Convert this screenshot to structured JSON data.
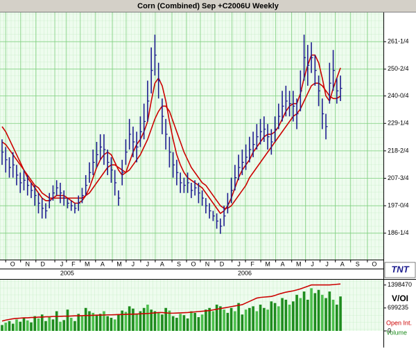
{
  "logo": "TNT",
  "chart_data": [
    {
      "type": "ohlc",
      "title": "Corn (Combined) Sep +C2006U Weekly",
      "bar_color": "#1c1c8e",
      "grid": true,
      "ylim": [
        175.9,
        272.7
      ],
      "yticks": [
        {
          "value": 186.25,
          "label": "186-1/4"
        },
        {
          "value": 197,
          "label": "197-0/4"
        },
        {
          "value": 207.75,
          "label": "207-3/4"
        },
        {
          "value": 218.5,
          "label": "218-2/4"
        },
        {
          "value": 229.25,
          "label": "229-1/4"
        },
        {
          "value": 240,
          "label": "240-0/4"
        },
        {
          "value": 250.5,
          "label": "250-2/4"
        },
        {
          "value": 261.25,
          "label": "261-1/4"
        }
      ],
      "xlim": [
        -0.57,
        104.8
      ],
      "xticks": [
        {
          "value": 2.9,
          "label": "O"
        },
        {
          "value": 7.0,
          "label": "N"
        },
        {
          "value": 11.2,
          "label": "D"
        },
        {
          "value": 16.4,
          "label": "J"
        },
        {
          "value": 19.6,
          "label": "F"
        },
        {
          "value": 23.4,
          "label": "M"
        },
        {
          "value": 27.6,
          "label": "A"
        },
        {
          "value": 32.2,
          "label": "M"
        },
        {
          "value": 36.0,
          "label": "J"
        },
        {
          "value": 40.0,
          "label": "J"
        },
        {
          "value": 44.0,
          "label": "A"
        },
        {
          "value": 48.6,
          "label": "S"
        },
        {
          "value": 52.6,
          "label": "O"
        },
        {
          "value": 56.4,
          "label": "N"
        },
        {
          "value": 60.4,
          "label": "D"
        },
        {
          "value": 65.1,
          "label": "J"
        },
        {
          "value": 68.8,
          "label": "F"
        },
        {
          "value": 73.0,
          "label": "M"
        },
        {
          "value": 77.1,
          "label": "A"
        },
        {
          "value": 81.5,
          "label": "M"
        },
        {
          "value": 85.3,
          "label": "J"
        },
        {
          "value": 89.3,
          "label": "J"
        },
        {
          "value": 93.5,
          "label": "A"
        },
        {
          "value": 97.7,
          "label": "S"
        },
        {
          "value": 102.3,
          "label": "O"
        }
      ],
      "year_labels": [
        {
          "value": 17.9,
          "label": "2005"
        },
        {
          "value": 66.7,
          "label": "2006"
        }
      ],
      "high": [
        223,
        220,
        216,
        218,
        213,
        210,
        211,
        209,
        206,
        205,
        202,
        200,
        198,
        202,
        205,
        207,
        206,
        203,
        200,
        199,
        198,
        201,
        204,
        209,
        214,
        219,
        222,
        225,
        225,
        219,
        216,
        211,
        203,
        215,
        223,
        231,
        228,
        226,
        232,
        237,
        246,
        259,
        264,
        253,
        239,
        231,
        224,
        218,
        215,
        210,
        208,
        210,
        206,
        207,
        206,
        203,
        200,
        198,
        195,
        194,
        192,
        197,
        202,
        208,
        213,
        217,
        219,
        221,
        224,
        226,
        229,
        231,
        232,
        229,
        227,
        232,
        237,
        242,
        244,
        242,
        242,
        239,
        250,
        264,
        260,
        261,
        256,
        248,
        239,
        233,
        253,
        258,
        247,
        248
      ],
      "low": [
        213,
        210,
        208,
        208,
        205,
        202,
        203,
        201,
        200,
        197,
        194,
        192,
        192,
        196,
        199,
        201,
        198,
        197,
        196,
        195,
        194,
        195,
        198,
        201,
        206,
        209,
        212,
        215,
        213,
        209,
        206,
        201,
        197,
        205,
        213,
        219,
        216,
        214,
        220,
        223,
        230,
        241,
        248,
        239,
        225,
        219,
        212,
        208,
        205,
        202,
        202,
        202,
        200,
        201,
        198,
        197,
        194,
        192,
        191,
        188,
        186,
        189,
        194,
        198,
        203,
        207,
        209,
        211,
        214,
        216,
        219,
        221,
        222,
        219,
        217,
        222,
        227,
        230,
        232,
        232,
        230,
        227,
        234,
        246,
        244,
        249,
        244,
        236,
        227,
        223,
        237,
        242,
        237,
        238
      ],
      "close": [
        218,
        215,
        212,
        213,
        209,
        206,
        207,
        205,
        203,
        201,
        198,
        196,
        195,
        199,
        202,
        204,
        202,
        200,
        198,
        197,
        196,
        198,
        201,
        205,
        210,
        214,
        217,
        220,
        219,
        214,
        211,
        206,
        200,
        210,
        218,
        225,
        222,
        220,
        226,
        230,
        238,
        250,
        256,
        246,
        232,
        225,
        218,
        213,
        210,
        206,
        205,
        206,
        203,
        204,
        202,
        200,
        197,
        195,
        193,
        191,
        189,
        193,
        198,
        203,
        208,
        212,
        214,
        216,
        219,
        221,
        224,
        226,
        227,
        224,
        222,
        227,
        232,
        236,
        238,
        237,
        236,
        233,
        242,
        255,
        252,
        255,
        250,
        242,
        233,
        228,
        245,
        250,
        242,
        243
      ],
      "lines": [
        {
          "color": "#cc0000",
          "values": [
            228,
            226,
            223,
            220,
            217,
            214,
            211,
            208,
            206,
            204,
            202,
            200,
            199,
            199,
            200,
            201,
            201,
            201,
            200,
            199,
            198,
            198,
            199,
            201,
            204,
            208,
            212,
            215,
            217,
            218,
            217,
            214,
            211,
            209,
            210,
            214,
            218,
            221,
            223,
            226,
            230,
            238,
            245,
            247,
            244,
            238,
            230,
            223,
            217,
            213,
            210,
            208,
            207,
            206,
            205,
            204,
            202,
            200,
            198,
            196,
            194,
            195,
            197,
            200,
            204,
            208,
            211,
            213,
            215,
            218,
            220,
            222,
            224,
            225,
            225,
            226,
            228,
            231,
            234,
            236,
            237,
            237,
            241,
            247,
            252,
            256,
            256,
            253,
            247,
            240,
            238,
            243,
            247,
            251
          ]
        },
        {
          "color": "#cc0000",
          "values": [
            222,
            221,
            219,
            217,
            215,
            213,
            211,
            209,
            207,
            205,
            204,
            202,
            201,
            200,
            200,
            200,
            200,
            200,
            200,
            200,
            200,
            200,
            200,
            201,
            202,
            204,
            206,
            208,
            210,
            212,
            213,
            213,
            212,
            211,
            210,
            211,
            213,
            215,
            217,
            220,
            223,
            227,
            231,
            234,
            236,
            236,
            234,
            230,
            226,
            222,
            218,
            215,
            212,
            210,
            208,
            206,
            205,
            203,
            201,
            199,
            197,
            196,
            196,
            197,
            199,
            201,
            203,
            205,
            208,
            210,
            212,
            214,
            216,
            218,
            220,
            222,
            224,
            226,
            228,
            230,
            232,
            233,
            235,
            238,
            241,
            244,
            245,
            245,
            244,
            242,
            240,
            239,
            239,
            240
          ]
        }
      ]
    },
    {
      "type": "bar",
      "axis_label": "V/OI",
      "ylim": [
        0,
        1560000
      ],
      "yticks": [
        0,
        699235,
        1398470
      ],
      "series": [
        {
          "name": "Volume",
          "color": "#1e8c1e",
          "values": [
            180000,
            250000,
            300000,
            220000,
            350000,
            280000,
            400000,
            320000,
            260000,
            450000,
            380000,
            500000,
            300000,
            420000,
            350000,
            600000,
            280000,
            330000,
            650000,
            400000,
            300000,
            520000,
            450000,
            700000,
            600000,
            550000,
            480000,
            520000,
            600000,
            450000,
            400000,
            350000,
            500000,
            620000,
            580000,
            750000,
            680000,
            520000,
            600000,
            700000,
            800000,
            650000,
            600000,
            550000,
            500000,
            700000,
            620000,
            450000,
            400000,
            520000,
            480000,
            380000,
            600000,
            550000,
            420000,
            500000,
            650000,
            700000,
            600000,
            800000,
            750000,
            650000,
            550000,
            700000,
            600000,
            850000,
            500000,
            650000,
            700000,
            750000,
            600000,
            800000,
            700000,
            650000,
            900000,
            850000,
            750000,
            1000000,
            950000,
            800000,
            900000,
            1100000,
            1000000,
            1200000,
            950000,
            1300000,
            1150000,
            1250000,
            1100000,
            1000000,
            1200000,
            950000,
            800000,
            1050000
          ]
        },
        {
          "name": "Open Int.",
          "color": "#cc0000",
          "type": "line",
          "values": [
            300000,
            330000,
            350000,
            370000,
            380000,
            390000,
            400000,
            400000,
            410000,
            410000,
            420000,
            420000,
            430000,
            430000,
            440000,
            440000,
            445000,
            450000,
            450000,
            455000,
            460000,
            460000,
            465000,
            470000,
            470000,
            475000,
            480000,
            480000,
            485000,
            490000,
            490000,
            495000,
            500000,
            500000,
            505000,
            510000,
            510000,
            515000,
            520000,
            525000,
            530000,
            540000,
            550000,
            560000,
            560000,
            550000,
            540000,
            540000,
            545000,
            550000,
            555000,
            560000,
            570000,
            580000,
            590000,
            600000,
            610000,
            620000,
            640000,
            660000,
            680000,
            700000,
            720000,
            740000,
            760000,
            780000,
            800000,
            850000,
            900000,
            950000,
            1000000,
            1020000,
            1030000,
            1040000,
            1050000,
            1080000,
            1120000,
            1150000,
            1180000,
            1200000,
            1220000,
            1250000,
            1280000,
            1320000,
            1360000,
            1400000,
            1400000,
            1400000,
            1400000,
            1400000,
            1400000,
            1410000,
            1420000,
            1430000
          ]
        }
      ]
    }
  ]
}
